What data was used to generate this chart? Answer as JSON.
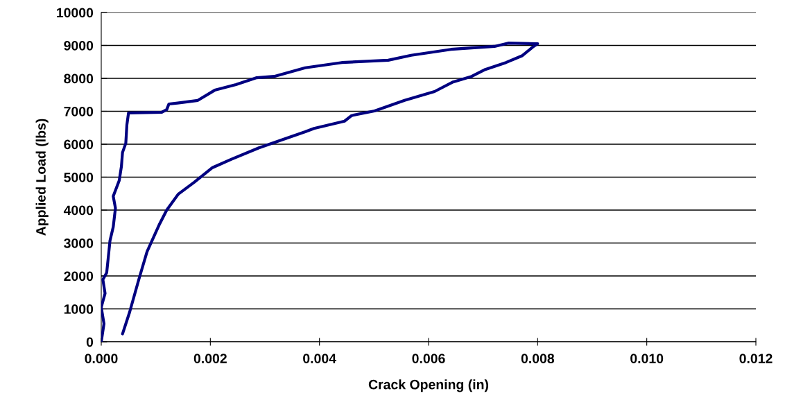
{
  "chart_data": {
    "type": "line",
    "xlabel": "Crack Opening (in)",
    "ylabel": "Applied Load (lbs)",
    "xlim": [
      0,
      0.012
    ],
    "ylim": [
      0,
      10000
    ],
    "xticks": [
      {
        "value": 0,
        "label": "0.000"
      },
      {
        "value": 0.002,
        "label": "0.002"
      },
      {
        "value": 0.004,
        "label": "0.004"
      },
      {
        "value": 0.006,
        "label": "0.006"
      },
      {
        "value": 0.008,
        "label": "0.008"
      },
      {
        "value": 0.01,
        "label": "0.010"
      },
      {
        "value": 0.012,
        "label": "0.012"
      }
    ],
    "yticks": [
      0,
      1000,
      2000,
      3000,
      4000,
      5000,
      6000,
      7000,
      8000,
      9000,
      10000
    ],
    "grid": "y",
    "marker": "none",
    "line_style": "solid",
    "series": [
      {
        "color": "#000080",
        "x": [
          0,
          5e-05,
          0,
          7e-05,
          3e-05,
          0.0001,
          0.00014,
          0.00016,
          0.00022,
          0.00026,
          0.00022,
          0.00033,
          0.00037,
          0.00039,
          0.00045,
          0.00047,
          0.0005,
          0.00111,
          0.0012,
          0.00124,
          0.00145,
          0.00177,
          0.00208,
          0.00247,
          0.00285,
          0.00317,
          0.00374,
          0.00441,
          0.00526,
          0.00568,
          0.00641,
          0.00721,
          0.00746,
          0.00797,
          0.008,
          0.00791,
          0.00772,
          0.00742,
          0.00704,
          0.00679,
          0.00645,
          0.00611,
          0.00556,
          0.00501,
          0.00459,
          0.00446,
          0.0039,
          0.00374,
          0.00331,
          0.00289,
          0.00238,
          0.00204,
          0.0017,
          0.00141,
          0.0012,
          0.00107,
          0.00084,
          0.00069,
          0.00052,
          0.00039
        ],
        "values": [
          0,
          550,
          1050,
          1470,
          1890,
          2100,
          2740,
          3070,
          3490,
          4060,
          4420,
          4900,
          5330,
          5750,
          6030,
          6590,
          6950,
          6970,
          7050,
          7220,
          7260,
          7330,
          7640,
          7810,
          8020,
          8060,
          8320,
          8480,
          8550,
          8700,
          8880,
          8970,
          9070,
          9050,
          9050,
          8950,
          8690,
          8480,
          8270,
          8060,
          7890,
          7600,
          7330,
          7010,
          6870,
          6700,
          6480,
          6380,
          6130,
          5890,
          5540,
          5290,
          4840,
          4480,
          4000,
          3580,
          2740,
          1900,
          900,
          240
        ]
      }
    ]
  }
}
